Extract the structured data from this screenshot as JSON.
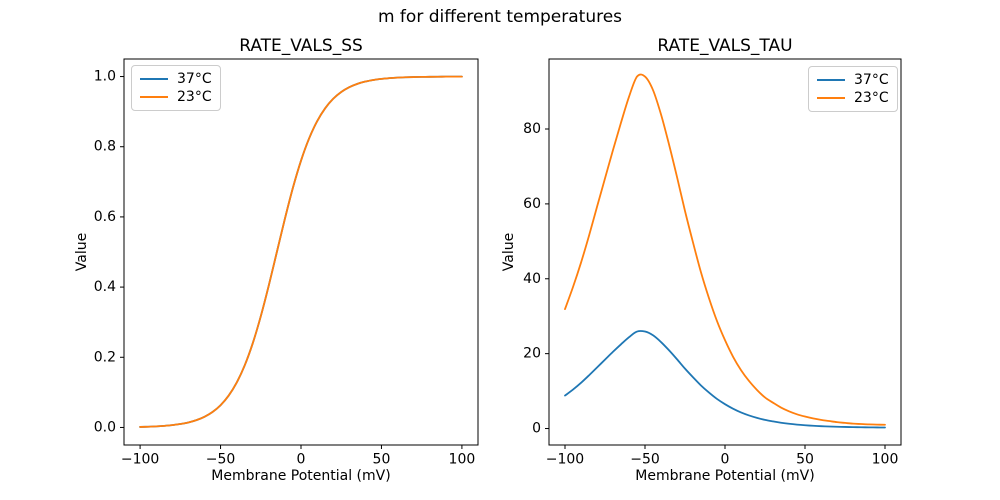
{
  "figure": {
    "suptitle": "m for different temperatures"
  },
  "colors": {
    "series_37c": "#1f77b4",
    "series_23c": "#ff7f0e",
    "axes_edge": "#000000",
    "legend_border": "#cccccc",
    "text": "#000000",
    "background": "#ffffff"
  },
  "chart_data": [
    {
      "type": "line",
      "title": "RATE_VALS_SS",
      "xlabel": "Membrane Potential (mV)",
      "ylabel": "Value",
      "xlim": [
        -110,
        110
      ],
      "ylim": [
        -0.05,
        1.05
      ],
      "grid": false,
      "xticks": {
        "values": [
          -100,
          -50,
          0,
          50,
          100
        ],
        "labels": [
          "−100",
          "−50",
          "0",
          "50",
          "100"
        ]
      },
      "yticks": {
        "values": [
          0.0,
          0.2,
          0.4,
          0.6,
          0.8,
          1.0
        ],
        "labels": [
          "0.0",
          "0.2",
          "0.4",
          "0.6",
          "0.8",
          "1.0"
        ]
      },
      "legend": {
        "position": "upper-left",
        "entries": [
          "37°C",
          "23°C"
        ]
      },
      "x": [
        -100,
        -95,
        -90,
        -85,
        -80,
        -75,
        -70,
        -65,
        -60,
        -55,
        -50,
        -45,
        -40,
        -35,
        -30,
        -25,
        -20,
        -15,
        -10,
        -5,
        0,
        5,
        10,
        15,
        20,
        25,
        30,
        35,
        40,
        45,
        50,
        55,
        60,
        65,
        70,
        75,
        80,
        85,
        90,
        95,
        100
      ],
      "series": [
        {
          "name": "37°C",
          "color": "#1f77b4",
          "values": [
            0.0014,
            0.0021,
            0.0031,
            0.0046,
            0.0067,
            0.0098,
            0.0143,
            0.0209,
            0.0304,
            0.0441,
            0.0634,
            0.0905,
            0.1275,
            0.1767,
            0.2398,
            0.3167,
            0.405,
            0.5,
            0.5949,
            0.6834,
            0.7602,
            0.8232,
            0.8725,
            0.9095,
            0.9366,
            0.9559,
            0.9696,
            0.9791,
            0.9857,
            0.9902,
            0.9933,
            0.9954,
            0.9969,
            0.9979,
            0.9985,
            0.999,
            0.9993,
            0.9995,
            0.9997,
            0.9998,
            0.9998
          ]
        },
        {
          "name": "23°C",
          "color": "#ff7f0e",
          "values": [
            0.0014,
            0.0021,
            0.0031,
            0.0046,
            0.0067,
            0.0098,
            0.0143,
            0.0209,
            0.0304,
            0.0441,
            0.0634,
            0.0905,
            0.1275,
            0.1767,
            0.2398,
            0.3167,
            0.405,
            0.5,
            0.5949,
            0.6834,
            0.7602,
            0.8232,
            0.8725,
            0.9095,
            0.9366,
            0.9559,
            0.9696,
            0.9791,
            0.9857,
            0.9902,
            0.9933,
            0.9954,
            0.9969,
            0.9979,
            0.9985,
            0.999,
            0.9993,
            0.9995,
            0.9997,
            0.9998,
            0.9998
          ]
        }
      ]
    },
    {
      "type": "line",
      "title": "RATE_VALS_TAU",
      "xlabel": "Membrane Potential (mV)",
      "ylabel": "Value",
      "xlim": [
        -110,
        110
      ],
      "ylim": [
        -4.4,
        98.7
      ],
      "grid": false,
      "xticks": {
        "values": [
          -100,
          -50,
          0,
          50,
          100
        ],
        "labels": [
          "−100",
          "−50",
          "0",
          "50",
          "100"
        ]
      },
      "yticks": {
        "values": [
          0,
          20,
          40,
          60,
          80
        ],
        "labels": [
          "0",
          "20",
          "40",
          "60",
          "80"
        ]
      },
      "legend": {
        "position": "upper-right",
        "entries": [
          "37°C",
          "23°C"
        ]
      },
      "x": [
        -100,
        -95,
        -90,
        -85,
        -80,
        -75,
        -70,
        -65,
        -60,
        -55,
        -50,
        -45,
        -40,
        -35,
        -30,
        -25,
        -20,
        -15,
        -10,
        -5,
        0,
        5,
        10,
        15,
        20,
        25,
        30,
        35,
        40,
        45,
        50,
        55,
        60,
        65,
        70,
        75,
        80,
        85,
        90,
        95,
        100
      ],
      "series": [
        {
          "name": "37°C",
          "color": "#1f77b4",
          "values": [
            8.8,
            10.4,
            12.2,
            14.2,
            16.3,
            18.4,
            20.5,
            22.5,
            24.4,
            25.9,
            25.9,
            24.9,
            23.1,
            20.9,
            18.5,
            16.0,
            13.7,
            11.5,
            9.6,
            7.9,
            6.5,
            5.3,
            4.3,
            3.5,
            2.85,
            2.3,
            1.9,
            1.55,
            1.27,
            1.05,
            0.88,
            0.74,
            0.63,
            0.54,
            0.47,
            0.42,
            0.37,
            0.34,
            0.31,
            0.29,
            0.27
          ]
        },
        {
          "name": "23°C",
          "color": "#ff7f0e",
          "values": [
            31.9,
            37.8,
            44.3,
            51.5,
            59.2,
            66.8,
            74.4,
            81.7,
            88.6,
            94.0,
            94.0,
            90.4,
            83.9,
            75.9,
            67.2,
            58.1,
            49.7,
            41.7,
            34.8,
            28.7,
            23.6,
            19.2,
            15.6,
            12.7,
            10.3,
            8.3,
            6.9,
            5.6,
            4.6,
            3.8,
            3.2,
            2.7,
            2.3,
            2.0,
            1.7,
            1.5,
            1.3,
            1.2,
            1.1,
            1.05,
            1.0
          ]
        }
      ]
    }
  ]
}
